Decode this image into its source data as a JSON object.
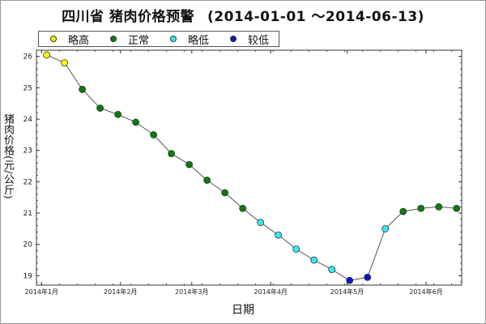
{
  "title": {
    "main": "四川省 猪肉价格预警",
    "range": "(2014-01-01 ～2014-06-13)"
  },
  "legend": [
    {
      "label": "略高",
      "color": "#ffff00"
    },
    {
      "label": "正常",
      "color": "#0a7d0a"
    },
    {
      "label": "略低",
      "color": "#33eeee"
    },
    {
      "label": "较低",
      "color": "#1010cc"
    }
  ],
  "chart_data": {
    "type": "scatter",
    "title": "四川省 猪肉价格预警 (2014-01-01 ～2014-06-13)",
    "xlabel": "日期",
    "ylabel": "猪肉价格(元/公斤)",
    "ylim": [
      18.7,
      26.2
    ],
    "xlim": [
      "2014-01-01",
      "2014-06-13"
    ],
    "y_ticks": [
      19,
      20,
      21,
      22,
      23,
      24,
      25,
      26
    ],
    "x_ticks": [
      {
        "date": "2014-01-01",
        "label": "2014年1月"
      },
      {
        "date": "2014-02-01",
        "label": "2014年2月"
      },
      {
        "date": "2014-03-01",
        "label": "2014年3月"
      },
      {
        "date": "2014-04-01",
        "label": "2014年4月"
      },
      {
        "date": "2014-05-01",
        "label": "2014年5月"
      },
      {
        "date": "2014-06-01",
        "label": "2014年6月"
      }
    ],
    "line_color": "#555555",
    "points": [
      {
        "date": "2014-01-03",
        "value": 26.05,
        "level": "略高"
      },
      {
        "date": "2014-01-10",
        "value": 25.8,
        "level": "略高"
      },
      {
        "date": "2014-01-17",
        "value": 24.95,
        "level": "正常"
      },
      {
        "date": "2014-01-24",
        "value": 24.35,
        "level": "正常"
      },
      {
        "date": "2014-01-31",
        "value": 24.15,
        "level": "正常"
      },
      {
        "date": "2014-02-07",
        "value": 23.9,
        "level": "正常"
      },
      {
        "date": "2014-02-14",
        "value": 23.5,
        "level": "正常"
      },
      {
        "date": "2014-02-21",
        "value": 22.9,
        "level": "正常"
      },
      {
        "date": "2014-02-28",
        "value": 22.55,
        "level": "正常"
      },
      {
        "date": "2014-03-07",
        "value": 22.05,
        "level": "正常"
      },
      {
        "date": "2014-03-14",
        "value": 21.65,
        "level": "正常"
      },
      {
        "date": "2014-03-21",
        "value": 21.15,
        "level": "正常"
      },
      {
        "date": "2014-03-28",
        "value": 20.7,
        "level": "略低"
      },
      {
        "date": "2014-04-04",
        "value": 20.3,
        "level": "略低"
      },
      {
        "date": "2014-04-11",
        "value": 19.85,
        "level": "略低"
      },
      {
        "date": "2014-04-18",
        "value": 19.5,
        "level": "略低"
      },
      {
        "date": "2014-04-25",
        "value": 19.2,
        "level": "略低"
      },
      {
        "date": "2014-05-02",
        "value": 18.85,
        "level": "较低"
      },
      {
        "date": "2014-05-09",
        "value": 18.95,
        "level": "较低"
      },
      {
        "date": "2014-05-16",
        "value": 20.5,
        "level": "略低"
      },
      {
        "date": "2014-05-23",
        "value": 21.05,
        "level": "正常"
      },
      {
        "date": "2014-05-30",
        "value": 21.15,
        "level": "正常"
      },
      {
        "date": "2014-06-06",
        "value": 21.2,
        "level": "正常"
      },
      {
        "date": "2014-06-13",
        "value": 21.15,
        "level": "正常"
      }
    ]
  }
}
